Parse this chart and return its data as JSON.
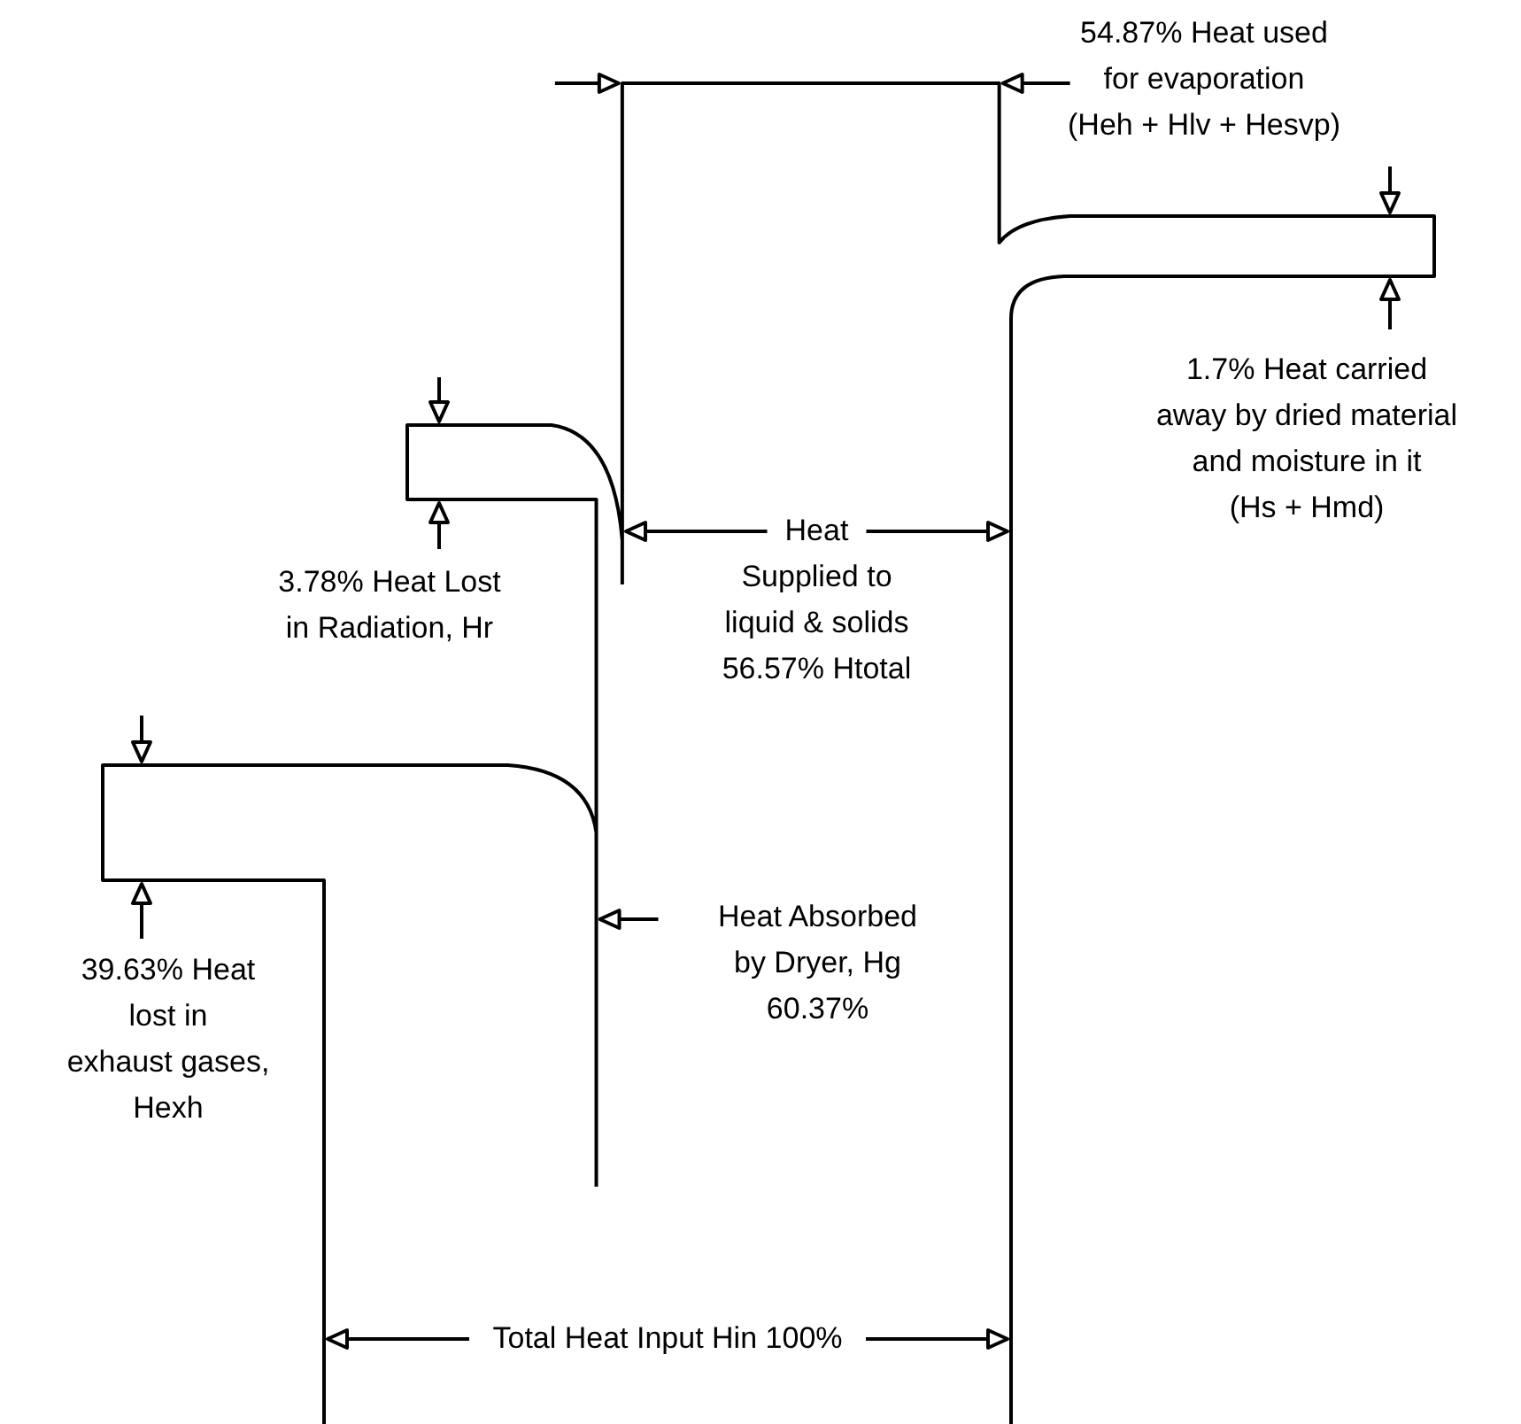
{
  "chart_data": {
    "type": "other",
    "categories": [
      "Total Heat Input Hin",
      "Heat\nlost in\nexhaust gases,\nHexh",
      "Heat Absorbed\nby Dryer, Hg",
      "Heat Lost\nin Radiation, Hr",
      "Heat\nSupplied to\nliquid & solids",
      "Heat used\nfor evaporation\n(Heh + Hlv + Hesvp)",
      "Heat carried\naway by dried material\nand moisture in it\n(Hs + Hmd)"
    ],
    "values": [
      100,
      39.63,
      60.37,
      3.78,
      56.57,
      54.87,
      1.7
    ],
    "value_labels": [
      "100%",
      "39.63%",
      "60.37%",
      "3.78%",
      "56.57% Htotal",
      "54.87%",
      "1.7%"
    ],
    "color": "#000000"
  }
}
